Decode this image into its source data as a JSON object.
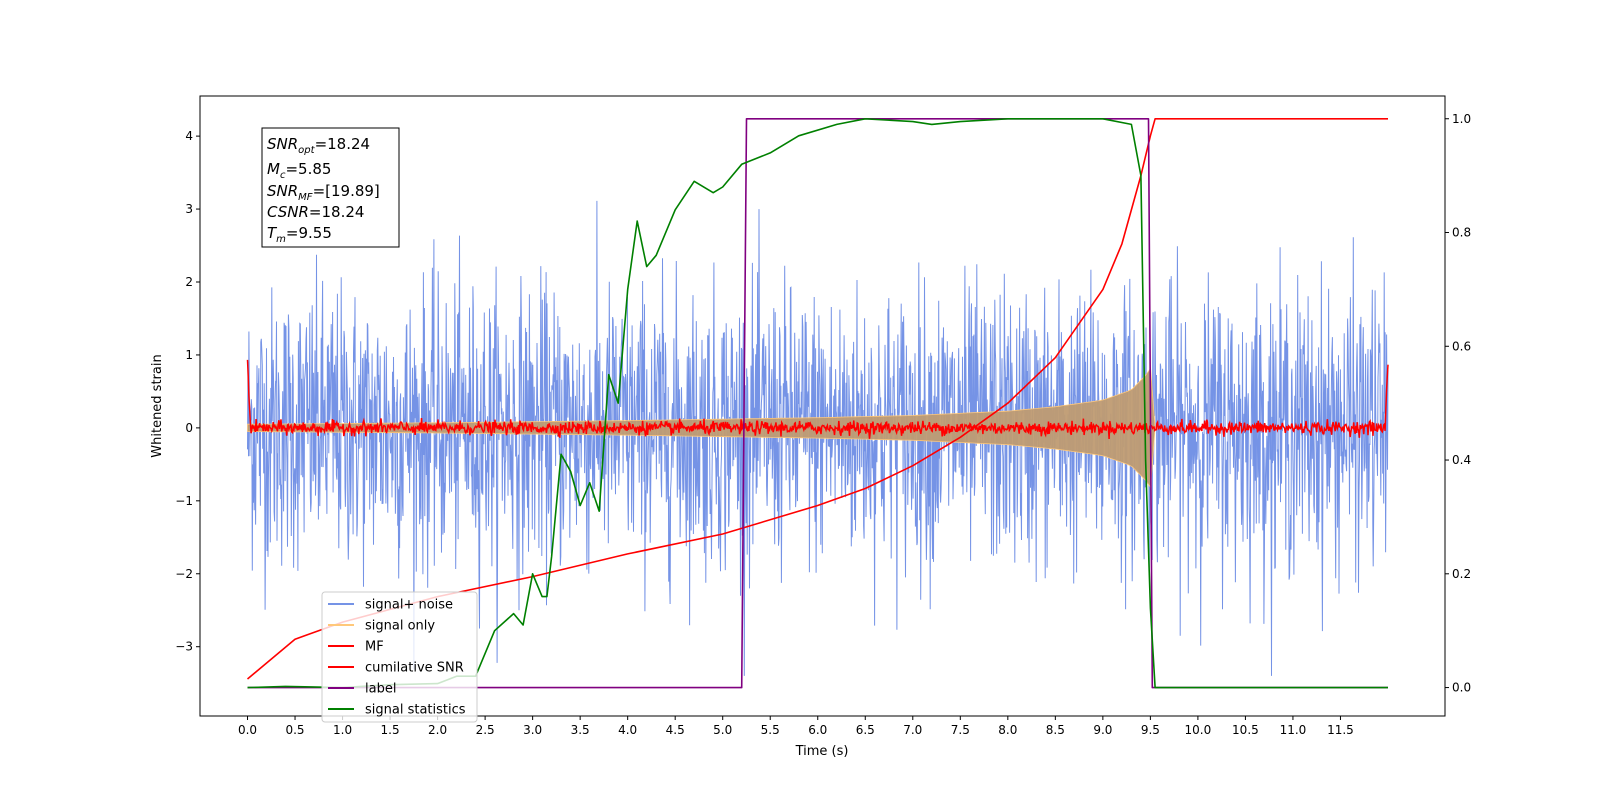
{
  "chart_data": {
    "type": "line",
    "xlabel": "Time (s)",
    "ylabel": "Whitened strain",
    "xlim": [
      -0.5,
      12.6
    ],
    "ylim": [
      -3.95,
      4.55
    ],
    "y2lim": [
      -0.05,
      1.04
    ],
    "grid": false,
    "legend_position": "lower-left",
    "x_ticks": [
      "0.0",
      "0.5",
      "1.0",
      "1.5",
      "2.0",
      "2.5",
      "3.0",
      "3.5",
      "4.0",
      "4.5",
      "5.0",
      "5.5",
      "6.0",
      "6.5",
      "7.0",
      "7.5",
      "8.0",
      "8.5",
      "9.0",
      "9.5",
      "10.0",
      "10.5",
      "11.0",
      "11.5"
    ],
    "y_ticks": [
      "−3",
      "−2",
      "−1",
      "0",
      "1",
      "2",
      "3",
      "4"
    ],
    "y2_ticks": [
      "0.0",
      "0.2",
      "0.4",
      "0.6",
      "0.8",
      "1.0"
    ],
    "info_box": {
      "snr_opt": {
        "base": "SNR",
        "sub": "opt",
        "rest": "=18.24"
      },
      "mc": {
        "base": "M",
        "sub": "c",
        "rest": "=5.85"
      },
      "snr_mf": {
        "base": "SNR",
        "sub": "MF",
        "rest": "=[19.89]"
      },
      "csnr": {
        "base": "CSNR",
        "sub": "",
        "rest": "=18.24"
      },
      "tm": {
        "base": "T",
        "sub": "m",
        "rest": "=9.55"
      }
    },
    "legend": [
      {
        "label": "signal+ noise",
        "color": "#7593e6"
      },
      {
        "label": "signal only",
        "color": "#ffc87a"
      },
      {
        "label": "MF",
        "color": "#ff0000"
      },
      {
        "label": "cumilative SNR",
        "color": "#ff0000"
      },
      {
        "label": "label",
        "color": "#800080"
      },
      {
        "label": "signal statistics",
        "color": "#008000"
      }
    ],
    "series": [
      {
        "name": "signal+ noise",
        "axis": "left",
        "color": "#7593e6",
        "description_points": {
          "x_start": 0.0,
          "x_end": 12.0,
          "noise_std": 0.95,
          "max_abs": 3.4
        }
      },
      {
        "name": "signal only",
        "axis": "left",
        "color": "#ffc87a",
        "envelope": {
          "x": [
            0.0,
            2.0,
            4.0,
            6.0,
            7.0,
            8.0,
            8.5,
            9.0,
            9.3,
            9.45,
            9.52,
            9.55
          ],
          "amplitude": [
            0.05,
            0.07,
            0.1,
            0.14,
            0.17,
            0.23,
            0.29,
            0.38,
            0.52,
            0.72,
            0.85,
            0.0
          ]
        }
      },
      {
        "name": "MF",
        "axis": "left",
        "color": "#ff0000",
        "x": [
          0.0,
          0.03,
          11.97,
          12.0
        ],
        "y": [
          1.0,
          0.0,
          0.0,
          0.9
        ],
        "noise_std": 0.045
      },
      {
        "name": "cumilative SNR",
        "axis": "right",
        "color": "#ff0000",
        "x": [
          0.0,
          0.5,
          1.0,
          2.0,
          3.0,
          4.0,
          5.0,
          6.0,
          6.5,
          7.0,
          7.5,
          8.0,
          8.5,
          9.0,
          9.2,
          9.4,
          9.5,
          9.55,
          12.0
        ],
        "y": [
          0.015,
          0.085,
          0.115,
          0.16,
          0.195,
          0.235,
          0.27,
          0.32,
          0.35,
          0.39,
          0.44,
          0.5,
          0.58,
          0.7,
          0.78,
          0.9,
          0.97,
          1.0,
          1.0
        ]
      },
      {
        "name": "label",
        "axis": "right",
        "color": "#800080",
        "x": [
          0.0,
          5.2,
          5.25,
          9.48,
          9.52,
          12.0
        ],
        "y": [
          0.0,
          0.0,
          1.0,
          1.0,
          0.0,
          0.0
        ]
      },
      {
        "name": "signal statistics",
        "axis": "right",
        "color": "#008000",
        "x": [
          0.0,
          0.4,
          1.0,
          1.5,
          2.0,
          2.2,
          2.4,
          2.6,
          2.8,
          2.9,
          3.0,
          3.1,
          3.15,
          3.2,
          3.3,
          3.4,
          3.5,
          3.6,
          3.7,
          3.8,
          3.9,
          4.0,
          4.1,
          4.2,
          4.3,
          4.5,
          4.7,
          4.9,
          5.0,
          5.2,
          5.5,
          5.8,
          6.2,
          6.5,
          7.0,
          7.2,
          7.5,
          8.0,
          8.5,
          9.0,
          9.3,
          9.4,
          9.45,
          9.5,
          9.55,
          11.0,
          12.0
        ],
        "y": [
          0.0,
          0.002,
          0.0,
          0.005,
          0.007,
          0.02,
          0.02,
          0.1,
          0.13,
          0.11,
          0.2,
          0.16,
          0.16,
          0.23,
          0.41,
          0.38,
          0.32,
          0.36,
          0.31,
          0.55,
          0.5,
          0.7,
          0.82,
          0.74,
          0.76,
          0.84,
          0.89,
          0.87,
          0.88,
          0.92,
          0.94,
          0.97,
          0.99,
          1.0,
          0.995,
          0.99,
          0.995,
          1.0,
          1.0,
          1.0,
          0.99,
          0.9,
          0.4,
          0.14,
          0.0,
          0.0,
          0.0
        ]
      }
    ]
  }
}
